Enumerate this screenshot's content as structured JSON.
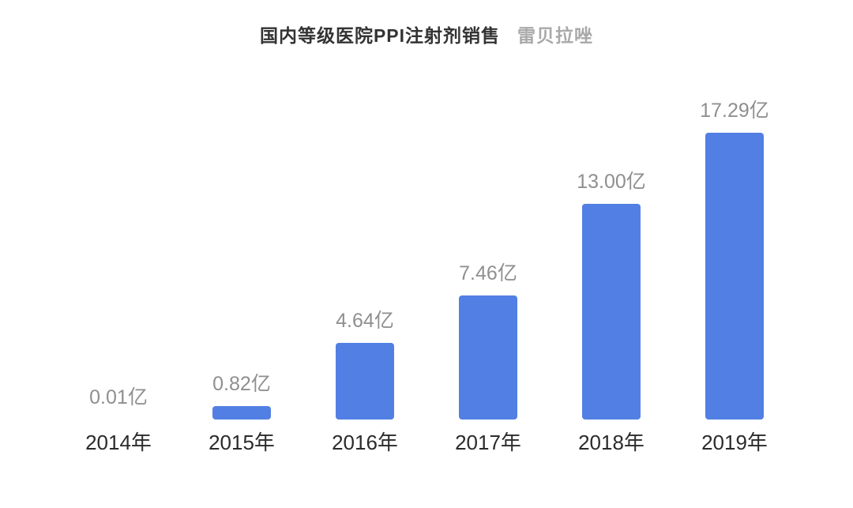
{
  "header": {
    "title": "国内等级医院PPI注射剂销售",
    "subtitle": "雷贝拉唑"
  },
  "chart_data": {
    "type": "bar",
    "title": "国内等级医院PPI注射剂销售",
    "subtitle": "雷贝拉唑",
    "categories": [
      "2014年",
      "2015年",
      "2016年",
      "2017年",
      "2018年",
      "2019年"
    ],
    "values": [
      0.01,
      0.82,
      4.64,
      7.46,
      13.0,
      17.29
    ],
    "value_labels": [
      "0.01亿",
      "0.82亿",
      "4.64亿",
      "7.46亿",
      "13.00亿",
      "17.29亿"
    ],
    "unit": "亿",
    "bar_color": "#527FE3",
    "value_label_color": "#8f8f8f",
    "category_label_color": "#2b2b2b",
    "background_color": "#ffffff",
    "grid": false,
    "legend": false,
    "ylim": [
      0,
      18
    ]
  }
}
